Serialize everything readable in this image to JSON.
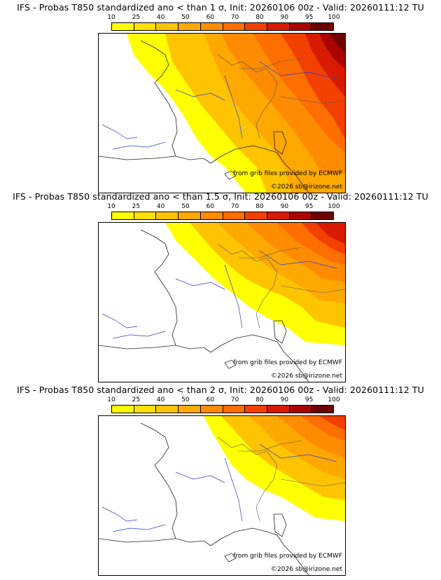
{
  "colorbar": {
    "labels": [
      "10",
      "25",
      "40",
      "50",
      "60",
      "70",
      "80",
      "90",
      "95",
      "100"
    ],
    "colors": [
      "#ffff00",
      "#ffe000",
      "#ffc400",
      "#ffa800",
      "#ff8c00",
      "#ff6e00",
      "#f24000",
      "#d71a00",
      "#a80500",
      "#6e0000"
    ]
  },
  "panels": [
    {
      "title": "IFS - Probas T850  standardized ano < than 1 σ, Init: 20260106 00z - Valid: 20260111:12 TU",
      "credit_source": "from grib files provided by ECMWF",
      "credit_copyright": "©2026 sb@irizone.net",
      "probability_level": "1 σ"
    },
    {
      "title": "IFS - Probas T850  standardized ano < than 1.5 σ, Init: 20260106 00z - Valid: 20260111:12 TU",
      "credit_source": "from grib files provided by ECMWF",
      "credit_copyright": "©2026 sb@irizone.net",
      "probability_level": "1.5 σ"
    },
    {
      "title": "IFS - Probas T850  standardized ano < than 2 σ, Init: 20260106 00z - Valid: 20260111:12 TU",
      "credit_source": "from grib files provided by ECMWF",
      "credit_copyright": "©2026 sb@irizone.net",
      "probability_level": "2 σ"
    }
  ]
}
